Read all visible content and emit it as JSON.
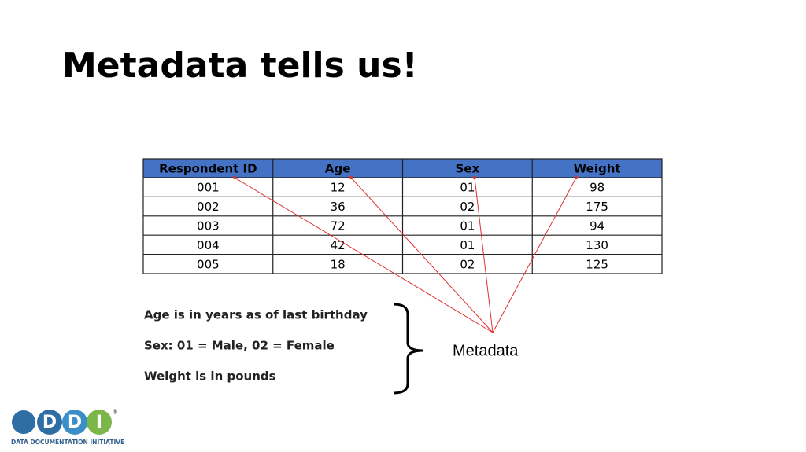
{
  "title": "Metadata tells us!",
  "table": {
    "header": [
      "Respondent ID",
      "Age",
      "Sex",
      "Weight"
    ],
    "rows": [
      [
        "001",
        "12",
        "01",
        "98"
      ],
      [
        "002",
        "36",
        "02",
        "175"
      ],
      [
        "003",
        "72",
        "01",
        "94"
      ],
      [
        "004",
        "42",
        "01",
        "130"
      ],
      [
        "005",
        "18",
        "02",
        "125"
      ]
    ]
  },
  "notes": [
    "Age is in years as of last birthday",
    "Sex: 01 = Male, 02 = Female",
    "Weight is in pounds"
  ],
  "callout": "Metadata",
  "logo": {
    "letters": [
      "D",
      "D",
      "I"
    ],
    "registered": "®",
    "tagline": "DATA DOCUMENTATION INITIATIVE"
  }
}
